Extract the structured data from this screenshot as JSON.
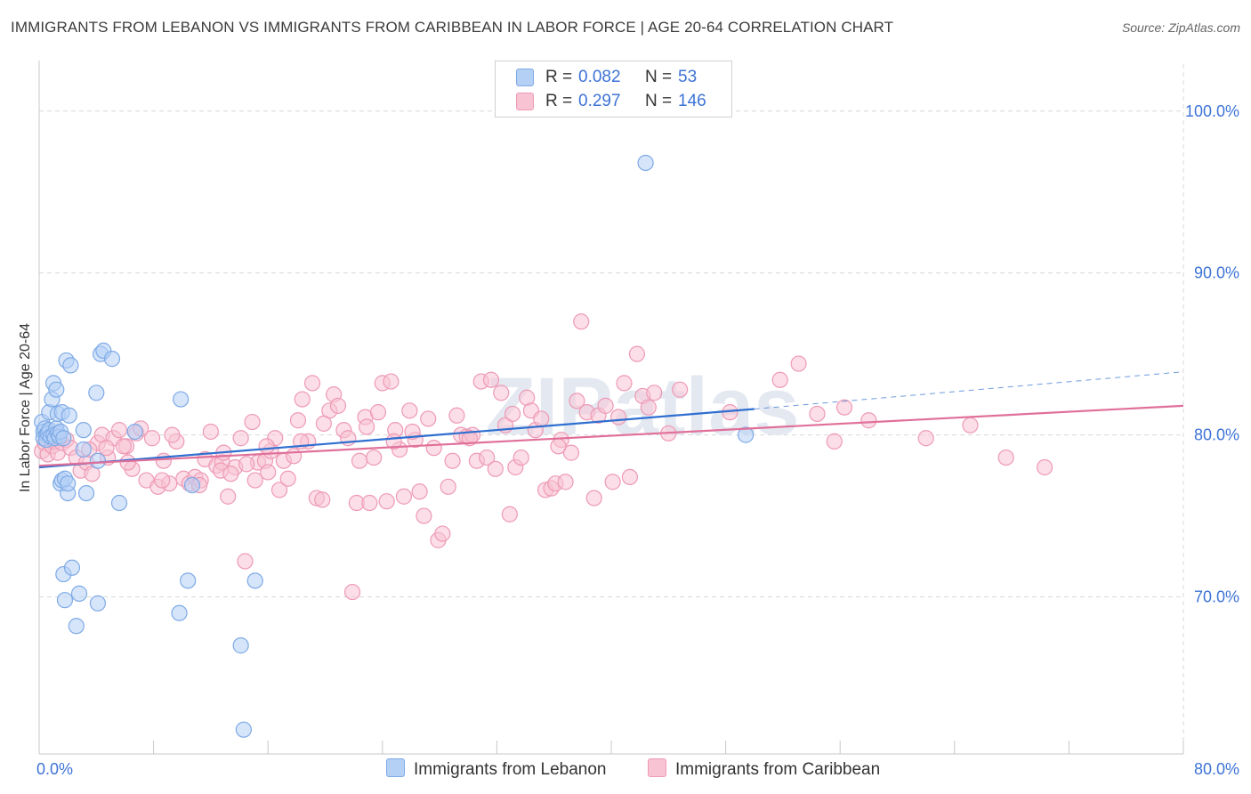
{
  "header": {
    "title": "IMMIGRANTS FROM LEBANON VS IMMIGRANTS FROM CARIBBEAN IN LABOR FORCE | AGE 20-64 CORRELATION CHART",
    "source": "Source: ZipAtlas.com"
  },
  "legend": {
    "rows": [
      {
        "r_label": "R =",
        "r_value": "0.082",
        "n_label": "N =",
        "n_value": "53"
      },
      {
        "r_label": "R =",
        "r_value": "0.297",
        "n_label": "N =",
        "n_value": "146"
      }
    ]
  },
  "bottom_legend": {
    "lebanon": "Immigrants from Lebanon",
    "caribbean": "Immigrants from Caribbean"
  },
  "watermark": "ZIPatlas",
  "colors": {
    "lebanon_fill": "#b5d0f5",
    "lebanon_stroke": "#7eaae6",
    "lebanon_line": "#2f6fd0",
    "caribbean_fill": "#f8c3d3",
    "caribbean_stroke": "#ee9ab5",
    "caribbean_line": "#e0709a",
    "tick_label": "#3d73d6",
    "grid": "#d9d9d9"
  },
  "chart_data": {
    "type": "scatter",
    "title": "IMMIGRANTS FROM LEBANON VS IMMIGRANTS FROM CARIBBEAN IN LABOR FORCE | AGE 20-64 CORRELATION CHART",
    "xlabel": "",
    "ylabel": "In Labor Force | Age 20-64",
    "xlim": [
      0,
      80
    ],
    "ylim": [
      60.3,
      102.9
    ],
    "x_tick_labels": [
      "0.0%",
      "80.0%"
    ],
    "y_ticks": [
      70,
      80,
      90,
      100
    ],
    "y_tick_labels": [
      "70.0%",
      "80.0%",
      "90.0%",
      "100.0%"
    ],
    "grid": true,
    "legend_position": "top-center",
    "series": [
      {
        "name": "Immigrants from Lebanon",
        "r": 0.082,
        "n": 53,
        "trend": {
          "x": [
            0,
            50
          ],
          "y": [
            78.0,
            81.6
          ],
          "dashed_extension": {
            "x": [
              50,
              80
            ],
            "y": [
              81.6,
              83.9
            ]
          }
        },
        "points": [
          [
            0.2,
            80.8
          ],
          [
            0.3,
            80.2
          ],
          [
            0.3,
            79.8
          ],
          [
            0.4,
            80.4
          ],
          [
            0.5,
            80.0
          ],
          [
            0.5,
            79.7
          ],
          [
            0.6,
            80.1
          ],
          [
            0.7,
            81.4
          ],
          [
            0.7,
            80.3
          ],
          [
            0.8,
            79.9
          ],
          [
            0.9,
            82.2
          ],
          [
            1.0,
            80.0
          ],
          [
            1.0,
            83.2
          ],
          [
            1.1,
            79.8
          ],
          [
            1.2,
            82.8
          ],
          [
            1.2,
            80.4
          ],
          [
            1.3,
            81.3
          ],
          [
            1.3,
            80.1
          ],
          [
            1.4,
            79.9
          ],
          [
            1.5,
            80.2
          ],
          [
            1.5,
            77.0
          ],
          [
            1.6,
            77.2
          ],
          [
            1.6,
            81.4
          ],
          [
            1.7,
            79.8
          ],
          [
            1.7,
            71.4
          ],
          [
            1.8,
            69.8
          ],
          [
            1.8,
            77.3
          ],
          [
            1.9,
            84.6
          ],
          [
            2.0,
            76.4
          ],
          [
            2.0,
            77.0
          ],
          [
            2.1,
            81.2
          ],
          [
            2.2,
            84.3
          ],
          [
            2.3,
            71.8
          ],
          [
            2.6,
            68.2
          ],
          [
            2.8,
            70.2
          ],
          [
            3.1,
            80.3
          ],
          [
            3.1,
            79.1
          ],
          [
            3.3,
            76.4
          ],
          [
            4.0,
            82.6
          ],
          [
            4.1,
            78.4
          ],
          [
            4.1,
            69.6
          ],
          [
            4.3,
            85.0
          ],
          [
            4.5,
            85.2
          ],
          [
            5.1,
            84.7
          ],
          [
            5.6,
            75.8
          ],
          [
            6.7,
            80.2
          ],
          [
            9.9,
            82.2
          ],
          [
            9.8,
            69.0
          ],
          [
            10.4,
            71.0
          ],
          [
            10.7,
            76.9
          ],
          [
            14.1,
            67.0
          ],
          [
            14.3,
            61.8
          ],
          [
            15.1,
            71.0
          ],
          [
            42.4,
            96.8
          ],
          [
            49.4,
            80.0
          ]
        ]
      },
      {
        "name": "Immigrants from Caribbean",
        "r": 0.297,
        "n": 146,
        "trend": {
          "x": [
            0,
            80
          ],
          "y": [
            78.1,
            81.8
          ]
        },
        "points": [
          [
            0.2,
            79.0
          ],
          [
            0.4,
            79.5
          ],
          [
            0.6,
            78.8
          ],
          [
            0.9,
            79.3
          ],
          [
            1.1,
            79.6
          ],
          [
            1.3,
            78.9
          ],
          [
            1.6,
            79.5
          ],
          [
            1.9,
            79.7
          ],
          [
            2.2,
            79.2
          ],
          [
            2.6,
            78.6
          ],
          [
            2.9,
            77.8
          ],
          [
            3.3,
            78.3
          ],
          [
            3.7,
            77.6
          ],
          [
            4.1,
            79.5
          ],
          [
            4.4,
            80.0
          ],
          [
            4.8,
            78.6
          ],
          [
            5.2,
            79.8
          ],
          [
            5.6,
            80.3
          ],
          [
            6.1,
            79.3
          ],
          [
            6.5,
            77.9
          ],
          [
            6.8,
            80.1
          ],
          [
            7.1,
            80.4
          ],
          [
            7.5,
            77.2
          ],
          [
            7.9,
            79.8
          ],
          [
            8.3,
            76.8
          ],
          [
            8.7,
            78.4
          ],
          [
            9.1,
            77.0
          ],
          [
            9.6,
            79.6
          ],
          [
            10.1,
            77.3
          ],
          [
            10.5,
            77.0
          ],
          [
            10.9,
            77.4
          ],
          [
            11.3,
            77.2
          ],
          [
            11.6,
            78.5
          ],
          [
            12.0,
            80.2
          ],
          [
            12.4,
            78.1
          ],
          [
            12.8,
            78.3
          ],
          [
            13.2,
            76.2
          ],
          [
            13.7,
            78.0
          ],
          [
            14.1,
            79.8
          ],
          [
            14.4,
            72.2
          ],
          [
            14.9,
            80.8
          ],
          [
            15.1,
            77.2
          ],
          [
            15.3,
            78.3
          ],
          [
            15.8,
            78.4
          ],
          [
            16.2,
            79.0
          ],
          [
            16.5,
            79.8
          ],
          [
            16.8,
            76.6
          ],
          [
            17.1,
            78.4
          ],
          [
            17.4,
            77.3
          ],
          [
            17.8,
            78.7
          ],
          [
            18.1,
            80.9
          ],
          [
            18.4,
            82.2
          ],
          [
            18.8,
            79.6
          ],
          [
            19.1,
            83.2
          ],
          [
            19.4,
            76.1
          ],
          [
            19.8,
            76.0
          ],
          [
            20.3,
            81.5
          ],
          [
            20.6,
            82.5
          ],
          [
            20.9,
            81.8
          ],
          [
            21.3,
            80.3
          ],
          [
            21.6,
            79.8
          ],
          [
            21.9,
            70.3
          ],
          [
            22.2,
            75.8
          ],
          [
            22.4,
            78.4
          ],
          [
            22.8,
            81.1
          ],
          [
            23.1,
            75.8
          ],
          [
            23.4,
            78.6
          ],
          [
            23.7,
            81.4
          ],
          [
            24.0,
            83.2
          ],
          [
            24.3,
            75.9
          ],
          [
            24.6,
            83.3
          ],
          [
            24.9,
            80.3
          ],
          [
            25.2,
            79.1
          ],
          [
            25.5,
            76.2
          ],
          [
            25.9,
            81.5
          ],
          [
            26.3,
            79.7
          ],
          [
            26.6,
            76.5
          ],
          [
            26.9,
            75.0
          ],
          [
            27.2,
            81.0
          ],
          [
            27.6,
            79.2
          ],
          [
            27.9,
            73.5
          ],
          [
            28.2,
            73.9
          ],
          [
            28.6,
            76.8
          ],
          [
            28.9,
            78.4
          ],
          [
            29.2,
            81.2
          ],
          [
            29.5,
            80.0
          ],
          [
            29.9,
            79.9
          ],
          [
            30.3,
            80.0
          ],
          [
            30.6,
            78.4
          ],
          [
            30.9,
            83.3
          ],
          [
            31.3,
            78.6
          ],
          [
            31.6,
            83.4
          ],
          [
            31.9,
            77.9
          ],
          [
            32.3,
            82.6
          ],
          [
            32.6,
            80.6
          ],
          [
            32.9,
            75.1
          ],
          [
            33.3,
            78.0
          ],
          [
            33.7,
            78.6
          ],
          [
            34.1,
            82.3
          ],
          [
            34.4,
            81.5
          ],
          [
            34.7,
            80.3
          ],
          [
            35.1,
            81.0
          ],
          [
            35.4,
            76.6
          ],
          [
            35.8,
            76.7
          ],
          [
            36.1,
            77.0
          ],
          [
            36.5,
            79.7
          ],
          [
            36.8,
            77.1
          ],
          [
            37.2,
            78.9
          ],
          [
            37.6,
            82.1
          ],
          [
            37.9,
            87.0
          ],
          [
            38.3,
            81.4
          ],
          [
            38.8,
            76.1
          ],
          [
            39.1,
            81.2
          ],
          [
            39.6,
            81.8
          ],
          [
            40.1,
            77.1
          ],
          [
            40.5,
            81.1
          ],
          [
            40.9,
            83.2
          ],
          [
            41.3,
            77.4
          ],
          [
            41.8,
            85.0
          ],
          [
            42.2,
            82.4
          ],
          [
            42.6,
            81.7
          ],
          [
            43.0,
            82.6
          ],
          [
            44.0,
            80.1
          ],
          [
            44.8,
            82.8
          ],
          [
            48.3,
            81.4
          ],
          [
            51.8,
            83.4
          ],
          [
            53.1,
            84.4
          ],
          [
            54.4,
            81.3
          ],
          [
            55.6,
            79.6
          ],
          [
            56.3,
            81.7
          ],
          [
            58.0,
            80.9
          ],
          [
            62.0,
            79.8
          ],
          [
            65.1,
            80.6
          ],
          [
            67.6,
            78.6
          ],
          [
            70.3,
            78.0
          ],
          [
            4.7,
            79.2
          ],
          [
            6.2,
            78.3
          ],
          [
            9.3,
            80.0
          ],
          [
            12.7,
            77.8
          ],
          [
            16.0,
            77.7
          ],
          [
            19.9,
            80.7
          ],
          [
            26.1,
            80.2
          ],
          [
            30.1,
            79.8
          ],
          [
            33.1,
            81.3
          ],
          [
            36.3,
            79.3
          ],
          [
            12.9,
            78.9
          ],
          [
            14.5,
            78.2
          ],
          [
            3.5,
            79.1
          ],
          [
            5.9,
            79.3
          ],
          [
            8.6,
            77.2
          ],
          [
            11.2,
            76.9
          ],
          [
            13.4,
            77.6
          ],
          [
            15.9,
            79.3
          ],
          [
            18.3,
            79.6
          ],
          [
            22.9,
            80.5
          ],
          [
            24.8,
            79.6
          ]
        ]
      }
    ]
  }
}
